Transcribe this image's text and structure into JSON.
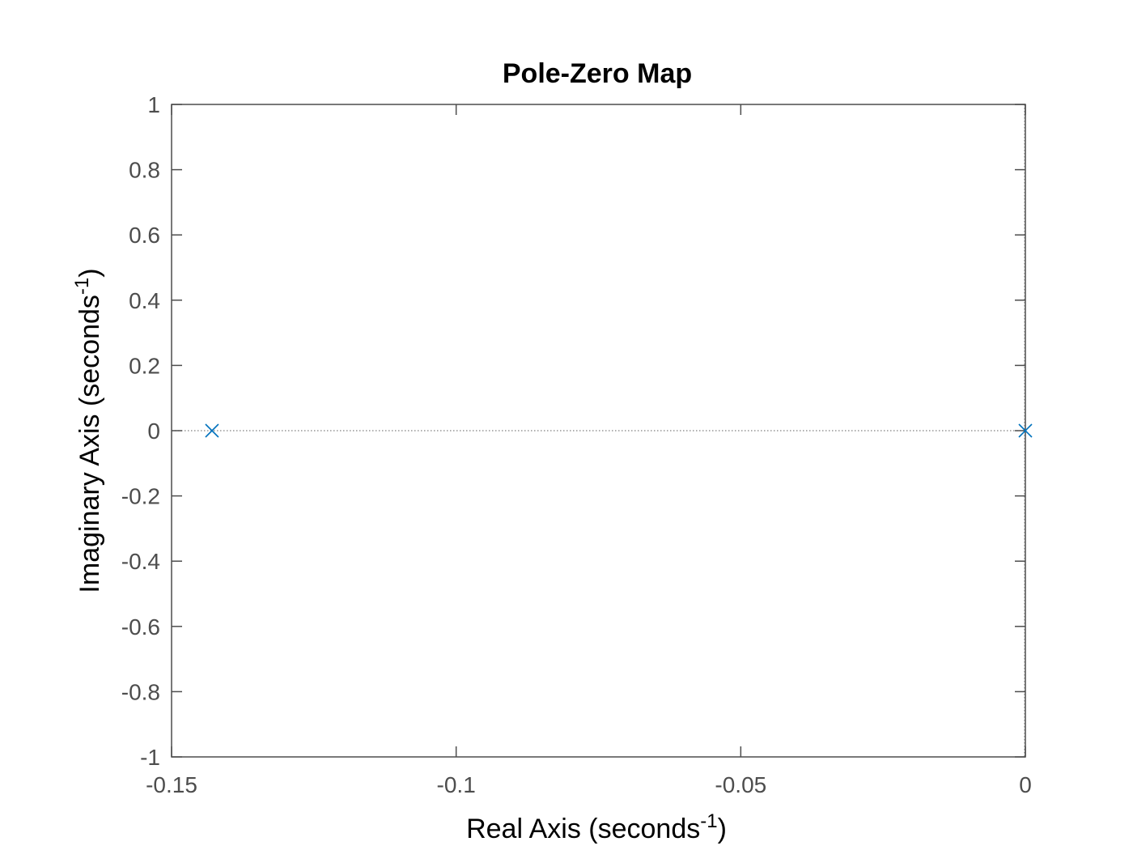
{
  "chart_data": {
    "type": "scatter",
    "title": "Pole-Zero Map",
    "xlabel": {
      "text": "Real Axis (seconds",
      "superscript": "-1",
      "suffix": ")"
    },
    "ylabel": {
      "text": "Imaginary Axis (seconds",
      "superscript": "-1",
      "suffix": ")"
    },
    "xlim": [
      -0.15,
      0
    ],
    "ylim": [
      -1,
      1
    ],
    "xticks": [
      -0.15,
      -0.1,
      -0.05,
      0
    ],
    "xtick_labels": [
      "-0.15",
      "-0.1",
      "-0.05",
      "0"
    ],
    "yticks": [
      1,
      0.8,
      0.6,
      0.4,
      0.2,
      0,
      -0.2,
      -0.4,
      -0.6,
      -0.8,
      -1
    ],
    "ytick_labels": [
      "1",
      "0.8",
      "0.6",
      "0.4",
      "0.2",
      "0",
      "-0.2",
      "-0.4",
      "-0.6",
      "-0.8",
      "-1"
    ],
    "grid": false,
    "reference_lines": {
      "real_axis_at_y0": true,
      "imag_axis_at_x0": true,
      "style": "dotted"
    },
    "series": [
      {
        "marker": "x",
        "points": [
          {
            "x": -0.1429,
            "y": 0
          },
          {
            "x": 0,
            "y": 0
          }
        ]
      }
    ]
  },
  "colors": {
    "marker": "#0072bd",
    "axes": "#4d4d4d",
    "reference_line": "#7f7f7f",
    "background": "#ffffff"
  }
}
